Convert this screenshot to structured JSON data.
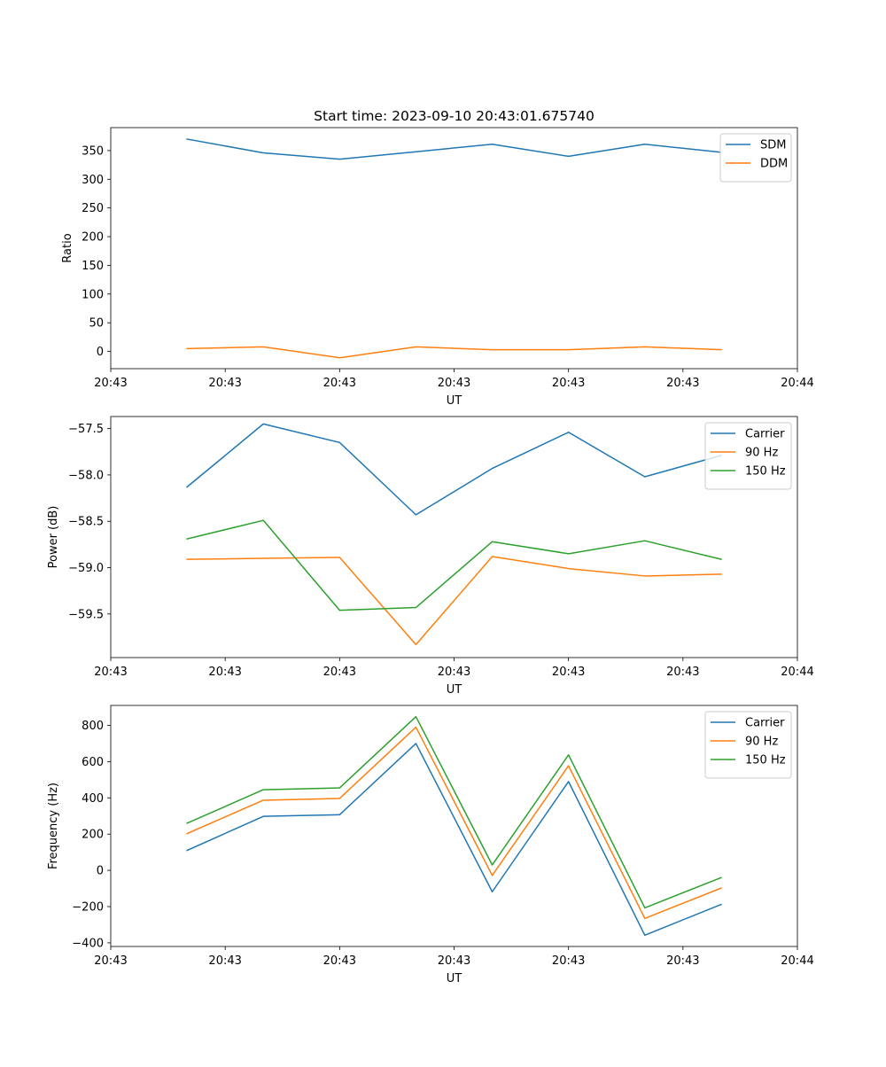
{
  "colors": {
    "blue": "#1f77b4",
    "orange": "#ff7f0e",
    "green": "#2ca02c"
  },
  "chart_data": [
    {
      "type": "line",
      "title": "Start time: 2023-09-10 20:43:01.675740",
      "xlabel": "UT",
      "ylabel": "Ratio",
      "x": [
        1,
        2,
        3,
        4,
        5,
        6,
        7,
        8
      ],
      "xlim": [
        0,
        9
      ],
      "xticks": [
        0,
        1.5,
        3,
        4.5,
        6,
        7.5,
        9
      ],
      "xtick_labels": [
        "20:43",
        "20:43",
        "20:43",
        "20:43",
        "20:43",
        "20:43",
        "20:44"
      ],
      "ylim": [
        -30,
        390
      ],
      "yticks": [
        0,
        50,
        100,
        150,
        200,
        250,
        300,
        350
      ],
      "ytick_labels": [
        "0",
        "50",
        "100",
        "150",
        "200",
        "250",
        "300",
        "350"
      ],
      "legend_position": "top-right",
      "series": [
        {
          "name": "SDM",
          "color": "blue",
          "values": [
            370,
            346,
            335,
            348,
            361,
            340,
            361,
            347
          ]
        },
        {
          "name": "DDM",
          "color": "orange",
          "values": [
            5,
            8,
            -11,
            8,
            3,
            3,
            8,
            3
          ]
        }
      ]
    },
    {
      "type": "line",
      "title": "",
      "xlabel": "UT",
      "ylabel": "Power (dB)",
      "x": [
        1,
        2,
        3,
        4,
        5,
        6,
        7,
        8
      ],
      "xlim": [
        0,
        9
      ],
      "xticks": [
        0,
        1.5,
        3,
        4.5,
        6,
        7.5,
        9
      ],
      "xtick_labels": [
        "20:43",
        "20:43",
        "20:43",
        "20:43",
        "20:43",
        "20:43",
        "20:44"
      ],
      "ylim": [
        -59.97,
        -57.37
      ],
      "yticks": [
        -57.5,
        -58.0,
        -58.5,
        -59.0,
        -59.5
      ],
      "ytick_labels": [
        "−57.5",
        "−58.0",
        "−58.5",
        "−59.0",
        "−59.5"
      ],
      "legend_position": "top-right",
      "series": [
        {
          "name": "Carrier",
          "color": "blue",
          "values": [
            -58.13,
            -57.45,
            -57.65,
            -58.43,
            -57.93,
            -57.54,
            -58.02,
            -57.79
          ]
        },
        {
          "name": "90 Hz",
          "color": "orange",
          "values": [
            -58.91,
            -58.9,
            -58.89,
            -59.83,
            -58.88,
            -59.01,
            -59.09,
            -59.07
          ]
        },
        {
          "name": "150 Hz",
          "color": "green",
          "values": [
            -58.69,
            -58.49,
            -59.46,
            -59.43,
            -58.72,
            -58.85,
            -58.71,
            -58.91
          ]
        }
      ]
    },
    {
      "type": "line",
      "title": "",
      "xlabel": "UT",
      "ylabel": "Frequency (Hz)",
      "x": [
        1,
        2,
        3,
        4,
        5,
        6,
        7,
        8
      ],
      "xlim": [
        0,
        9
      ],
      "xticks": [
        0,
        1.5,
        3,
        4.5,
        6,
        7.5,
        9
      ],
      "xtick_labels": [
        "20:43",
        "20:43",
        "20:43",
        "20:43",
        "20:43",
        "20:43",
        "20:44"
      ],
      "ylim": [
        -420,
        910
      ],
      "yticks": [
        -400,
        -200,
        0,
        200,
        400,
        600,
        800
      ],
      "ytick_labels": [
        "−400",
        "−200",
        "0",
        "200",
        "400",
        "600",
        "800"
      ],
      "legend_position": "top-right",
      "series": [
        {
          "name": "Carrier",
          "color": "blue",
          "values": [
            110,
            298,
            307,
            700,
            -118,
            490,
            -358,
            -188
          ]
        },
        {
          "name": "90 Hz",
          "color": "orange",
          "values": [
            203,
            387,
            397,
            790,
            -28,
            577,
            -265,
            -98
          ]
        },
        {
          "name": "150 Hz",
          "color": "green",
          "values": [
            260,
            445,
            455,
            848,
            30,
            637,
            -207,
            -40
          ]
        }
      ]
    }
  ]
}
